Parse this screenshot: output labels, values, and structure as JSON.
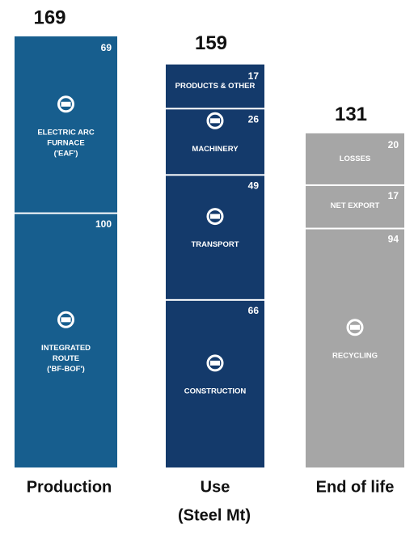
{
  "chart_data": {
    "type": "stacked_bar",
    "subtitle": "(Steel Mt)",
    "categories": [
      "Production",
      "Use",
      "End of life"
    ],
    "totals": [
      169,
      159,
      131
    ],
    "colors": [
      "#175e8e",
      "#143a6b",
      "#a6a6a6"
    ],
    "columns": [
      {
        "segments": [
          {
            "label": [
              "ELECTRIC ARC",
              "FURNACE",
              "('EAF')"
            ],
            "value": 69
          },
          {
            "label": [
              "INTEGRATED",
              "ROUTE",
              "('BF-BOF')"
            ],
            "value": 100
          }
        ]
      },
      {
        "segments": [
          {
            "label": [
              "PRODUCTS & OTHER"
            ],
            "value": 17
          },
          {
            "label": [
              "MACHINERY"
            ],
            "value": 26
          },
          {
            "label": [
              "TRANSPORT"
            ],
            "value": 49
          },
          {
            "label": [
              "CONSTRUCTION"
            ],
            "value": 66
          }
        ]
      },
      {
        "segments": [
          {
            "label": [
              "LOSSES"
            ],
            "value": 20
          },
          {
            "label": [
              "NET EXPORT"
            ],
            "value": 17
          },
          {
            "label": [
              "RECYCLING"
            ],
            "value": 94
          }
        ]
      }
    ]
  }
}
